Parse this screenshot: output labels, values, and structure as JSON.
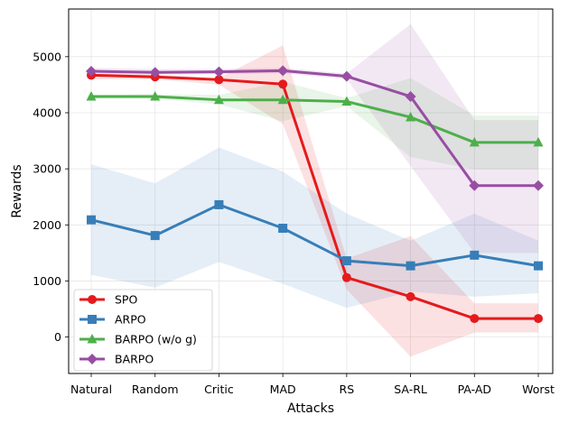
{
  "chart_data": {
    "type": "line",
    "xlabel": "Attacks",
    "ylabel": "Rewards",
    "categories": [
      "Natural",
      "Random",
      "Critic",
      "MAD",
      "RS",
      "SA-RL",
      "PA-AD",
      "Worst"
    ],
    "ylim": [
      -650,
      5850
    ],
    "yticks": [
      0,
      1000,
      2000,
      3000,
      4000,
      5000
    ],
    "grid": true,
    "legend_position": "lower-left",
    "series": [
      {
        "name": "SPO",
        "color": "#e41a1c",
        "marker": "circle",
        "values": [
          4670,
          4640,
          4590,
          4510,
          1060,
          720,
          330,
          330
        ],
        "band_upper": [
          4700,
          4680,
          4620,
          5200,
          1400,
          1800,
          600,
          600
        ],
        "band_lower": [
          4600,
          4600,
          4500,
          3800,
          850,
          -350,
          80,
          80
        ]
      },
      {
        "name": "ARPO",
        "color": "#377eb8",
        "marker": "square",
        "values": [
          2090,
          1810,
          2360,
          1940,
          1360,
          1270,
          1460,
          1270
        ],
        "band_upper": [
          3080,
          2740,
          3380,
          2950,
          2200,
          1720,
          2200,
          1720
        ],
        "band_lower": [
          1110,
          880,
          1340,
          950,
          520,
          810,
          720,
          780
        ]
      },
      {
        "name": "BARPO (w/o g)",
        "color": "#4daf4a",
        "marker": "triangle",
        "values": [
          4290,
          4290,
          4230,
          4230,
          4200,
          3920,
          3470,
          3470
        ],
        "band_upper": [
          4320,
          4330,
          4320,
          4550,
          4260,
          4620,
          3950,
          3950
        ],
        "band_lower": [
          4250,
          4250,
          4150,
          3850,
          4120,
          3210,
          2990,
          2990
        ]
      },
      {
        "name": "BARPO",
        "color": "#984ea3",
        "marker": "diamond",
        "values": [
          4740,
          4720,
          4730,
          4750,
          4650,
          4290,
          2700,
          2700
        ],
        "band_upper": [
          4800,
          4780,
          4780,
          4800,
          4700,
          5580,
          3870,
          3870
        ],
        "band_lower": [
          4700,
          4680,
          4690,
          4700,
          4600,
          3050,
          1500,
          1500
        ]
      }
    ]
  }
}
